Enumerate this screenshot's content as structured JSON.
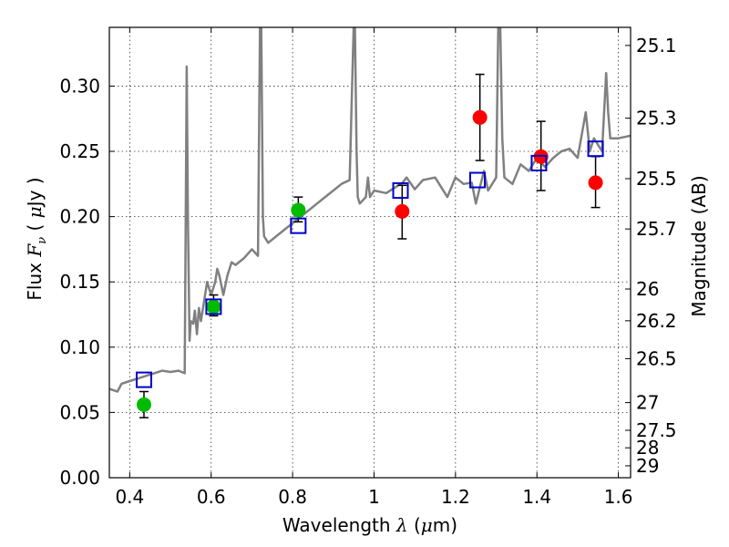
{
  "chart_data": {
    "type": "scatter",
    "xlabel_prefix": "Wavelength  ",
    "xlabel_symbol": "λ",
    "xlabel_unit_open": " (",
    "xlabel_mu": "μ",
    "xlabel_unit_close": "m)",
    "ylabel_prefix": "Flux  ",
    "ylabel_symbol": "F",
    "ylabel_sub": "ν",
    "ylabel_unit_open": "  ( ",
    "ylabel_mu": "μ",
    "ylabel_unit_close": "Jy )",
    "y2label": "Magnitude (AB)",
    "xlim": [
      0.35,
      1.63
    ],
    "ylim": [
      0.0,
      0.345
    ],
    "grid": true,
    "x_ticks": [
      {
        "value": 0.4,
        "label": "0.4"
      },
      {
        "value": 0.6,
        "label": "0.6"
      },
      {
        "value": 0.8,
        "label": "0.8"
      },
      {
        "value": 1.0,
        "label": "1"
      },
      {
        "value": 1.2,
        "label": "1.2"
      },
      {
        "value": 1.4,
        "label": "1.4"
      },
      {
        "value": 1.6,
        "label": "1.6"
      }
    ],
    "y_ticks": [
      {
        "value": 0.0,
        "label": "0.00"
      },
      {
        "value": 0.05,
        "label": "0.05"
      },
      {
        "value": 0.1,
        "label": "0.10"
      },
      {
        "value": 0.15,
        "label": "0.15"
      },
      {
        "value": 0.2,
        "label": "0.20"
      },
      {
        "value": 0.25,
        "label": "0.25"
      },
      {
        "value": 0.3,
        "label": "0.30"
      }
    ],
    "magnitude_ticks": [
      {
        "value": 25.1,
        "label": "25.1"
      },
      {
        "value": 25.3,
        "label": "25.3"
      },
      {
        "value": 25.5,
        "label": "25.5"
      },
      {
        "value": 25.7,
        "label": "25.7"
      },
      {
        "value": 26.0,
        "label": "26"
      },
      {
        "value": 26.2,
        "label": "26.2"
      },
      {
        "value": 26.5,
        "label": "26.5"
      },
      {
        "value": 27.0,
        "label": "27"
      },
      {
        "value": 27.5,
        "label": "27.5"
      },
      {
        "value": 28.0,
        "label": "28"
      },
      {
        "value": 29.0,
        "label": "29"
      }
    ],
    "model_spectrum": {
      "color": "#808080",
      "x": [
        0.35,
        0.37,
        0.38,
        0.4,
        0.42,
        0.44,
        0.46,
        0.48,
        0.5,
        0.52,
        0.535,
        0.54,
        0.543,
        0.547,
        0.55,
        0.556,
        0.56,
        0.565,
        0.57,
        0.575,
        0.58,
        0.59,
        0.6,
        0.61,
        0.615,
        0.62,
        0.63,
        0.64,
        0.65,
        0.66,
        0.68,
        0.7,
        0.715,
        0.72,
        0.723,
        0.727,
        0.73,
        0.74,
        0.76,
        0.78,
        0.8,
        0.82,
        0.84,
        0.86,
        0.88,
        0.9,
        0.92,
        0.94,
        0.95,
        0.953,
        0.957,
        0.96,
        0.965,
        0.98,
        0.985,
        0.99,
        1.0,
        1.03,
        1.05,
        1.07,
        1.08,
        1.1,
        1.12,
        1.15,
        1.18,
        1.2,
        1.22,
        1.24,
        1.25,
        1.27,
        1.28,
        1.29,
        1.3,
        1.305,
        1.31,
        1.315,
        1.32,
        1.34,
        1.36,
        1.38,
        1.4,
        1.42,
        1.44,
        1.46,
        1.48,
        1.5,
        1.52,
        1.53,
        1.535,
        1.54,
        1.56,
        1.57,
        1.575,
        1.58,
        1.6,
        1.63
      ],
      "y": [
        0.068,
        0.066,
        0.072,
        0.074,
        0.076,
        0.078,
        0.08,
        0.082,
        0.081,
        0.082,
        0.08,
        0.315,
        0.2,
        0.105,
        0.12,
        0.118,
        0.128,
        0.11,
        0.13,
        0.12,
        0.13,
        0.15,
        0.14,
        0.15,
        0.16,
        0.155,
        0.14,
        0.155,
        0.165,
        0.163,
        0.168,
        0.175,
        0.17,
        0.345,
        0.345,
        0.2,
        0.185,
        0.18,
        0.185,
        0.19,
        0.195,
        0.2,
        0.205,
        0.21,
        0.215,
        0.22,
        0.225,
        0.228,
        0.345,
        0.345,
        0.25,
        0.215,
        0.21,
        0.215,
        0.23,
        0.215,
        0.22,
        0.218,
        0.222,
        0.226,
        0.23,
        0.221,
        0.228,
        0.23,
        0.215,
        0.23,
        0.225,
        0.226,
        0.21,
        0.235,
        0.22,
        0.225,
        0.23,
        0.345,
        0.345,
        0.26,
        0.23,
        0.225,
        0.24,
        0.235,
        0.245,
        0.238,
        0.245,
        0.25,
        0.252,
        0.245,
        0.28,
        0.25,
        0.255,
        0.26,
        0.25,
        0.31,
        0.28,
        0.26,
        0.26,
        0.262
      ]
    },
    "series": [
      {
        "marker": "circle",
        "color": "#00bb00",
        "points": [
          {
            "x": 0.435,
            "y": 0.056,
            "err_low": 0.046,
            "err_high": 0.066
          },
          {
            "x": 0.606,
            "y": 0.131,
            "err_low": 0.124,
            "err_high": 0.14
          },
          {
            "x": 0.814,
            "y": 0.205,
            "err_low": 0.196,
            "err_high": 0.215
          }
        ]
      },
      {
        "marker": "circle",
        "color": "#ff0000",
        "points": [
          {
            "x": 1.069,
            "y": 0.204,
            "err_low": 0.183,
            "err_high": 0.224
          },
          {
            "x": 1.26,
            "y": 0.276,
            "err_low": 0.243,
            "err_high": 0.309
          },
          {
            "x": 1.41,
            "y": 0.246,
            "err_low": 0.22,
            "err_high": 0.273
          },
          {
            "x": 1.544,
            "y": 0.226,
            "err_low": 0.207,
            "err_high": 0.246
          }
        ]
      },
      {
        "marker": "square",
        "color": "#0000cc",
        "points": [
          {
            "x": 0.435,
            "y": 0.075
          },
          {
            "x": 0.606,
            "y": 0.131
          },
          {
            "x": 0.814,
            "y": 0.193
          },
          {
            "x": 1.065,
            "y": 0.22
          },
          {
            "x": 1.254,
            "y": 0.228
          },
          {
            "x": 1.405,
            "y": 0.241
          },
          {
            "x": 1.544,
            "y": 0.252
          }
        ]
      }
    ]
  }
}
